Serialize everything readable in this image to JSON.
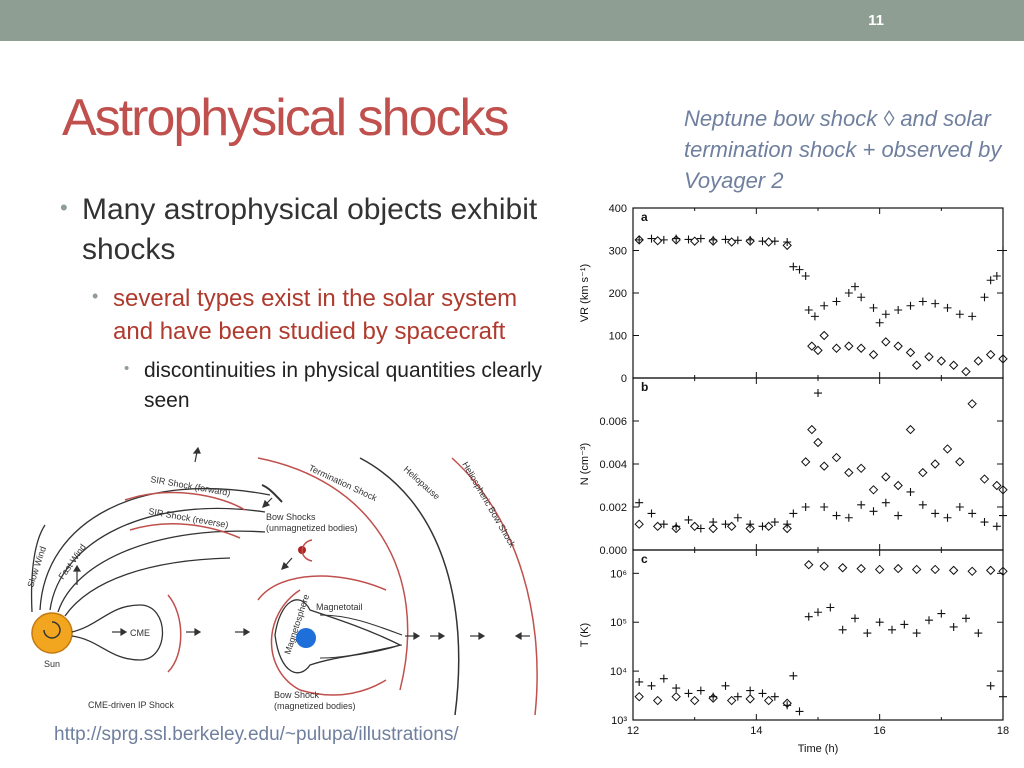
{
  "slide": {
    "number": "11",
    "title": "Astrophysical shocks",
    "caption": "Neptune bow shock ◊ and solar termination shock + observed by Voyager 2",
    "bullets": {
      "level1": "Many astrophysical objects exhibit shocks",
      "level2": "several types exist in the solar system and have been studied by spacecraft",
      "level3": "discontinuities in physical quantities clearly seen"
    },
    "source_url": "http://sprg.ssl.berkeley.edu/~pulupa/illustrations/"
  },
  "diagram": {
    "labels": {
      "sun": "Sun",
      "slow_wind": "Slow Wind",
      "fast_wind": "Fast Wind",
      "sir_forward": "SIR Shock (forward)",
      "sir_reverse": "SIR Shock (reverse)",
      "cme": "CME",
      "cme_shock": "CME-driven IP Shock",
      "bow_unmag_1": "Bow Shocks",
      "bow_unmag_2": "(unmagnetized bodies)",
      "bow_mag_1": "Bow Shock",
      "bow_mag_2": "(magnetized bodies)",
      "magnetosphere": "Magnetosphere",
      "magnetotail": "Magnetotail",
      "termination": "Termination Shock",
      "heliopause": "Heliopause",
      "helio_bow": "Heliospheric Bow Shock"
    },
    "colors": {
      "shock": "#c0504d",
      "sun": "#f2a51f",
      "planet": "#1e6fd9",
      "line": "#333333"
    }
  },
  "chart_data": [
    {
      "type": "scatter",
      "panel": "a",
      "ylabel": "VR (km s⁻¹)",
      "ylim": [
        0,
        400
      ],
      "yticks": [
        "0",
        "100",
        "200",
        "300",
        "400"
      ],
      "xlim": [
        12,
        18
      ],
      "series": [
        {
          "marker": "plus",
          "points": [
            [
              12.1,
              325
            ],
            [
              12.3,
              328
            ],
            [
              12.5,
              325
            ],
            [
              12.7,
              328
            ],
            [
              12.9,
              326
            ],
            [
              13.1,
              328
            ],
            [
              13.3,
              325
            ],
            [
              13.5,
              326
            ],
            [
              13.7,
              324
            ],
            [
              13.9,
              325
            ],
            [
              14.1,
              322
            ],
            [
              14.3,
              322
            ],
            [
              14.5,
              320
            ],
            [
              14.6,
              262
            ],
            [
              14.7,
              255
            ],
            [
              14.8,
              240
            ],
            [
              14.85,
              160
            ],
            [
              14.95,
              145
            ],
            [
              15.1,
              170
            ],
            [
              15.3,
              180
            ],
            [
              15.5,
              200
            ],
            [
              15.6,
              215
            ],
            [
              15.7,
              190
            ],
            [
              15.9,
              165
            ],
            [
              16.0,
              130
            ],
            [
              16.1,
              150
            ],
            [
              16.3,
              160
            ],
            [
              16.5,
              170
            ],
            [
              16.7,
              180
            ],
            [
              16.9,
              175
            ],
            [
              17.1,
              165
            ],
            [
              17.3,
              150
            ],
            [
              17.5,
              145
            ],
            [
              17.7,
              190
            ],
            [
              17.8,
              230
            ],
            [
              17.9,
              240
            ],
            [
              18.0,
              300
            ]
          ]
        },
        {
          "marker": "diamond",
          "points": [
            [
              12.1,
              325
            ],
            [
              12.4,
              323
            ],
            [
              12.7,
              325
            ],
            [
              13.0,
              322
            ],
            [
              13.3,
              322
            ],
            [
              13.6,
              320
            ],
            [
              13.9,
              322
            ],
            [
              14.2,
              320
            ],
            [
              14.5,
              312
            ],
            [
              14.9,
              75
            ],
            [
              15.0,
              65
            ],
            [
              15.1,
              100
            ],
            [
              15.3,
              70
            ],
            [
              15.5,
              75
            ],
            [
              15.7,
              70
            ],
            [
              15.9,
              55
            ],
            [
              16.1,
              85
            ],
            [
              16.3,
              75
            ],
            [
              16.5,
              60
            ],
            [
              16.6,
              30
            ],
            [
              16.8,
              50
            ],
            [
              17.0,
              40
            ],
            [
              17.2,
              30
            ],
            [
              17.4,
              15
            ],
            [
              17.6,
              40
            ],
            [
              17.8,
              55
            ],
            [
              18.0,
              45
            ]
          ]
        }
      ]
    },
    {
      "type": "scatter",
      "panel": "b",
      "ylabel": "N (cm⁻³)",
      "ylim": [
        0,
        0.008
      ],
      "yticks": [
        "0.000",
        "0.002",
        "0.004",
        "0.006"
      ],
      "xlim": [
        12,
        18
      ],
      "series": [
        {
          "marker": "plus",
          "points": [
            [
              12.1,
              0.0022
            ],
            [
              12.3,
              0.0017
            ],
            [
              12.5,
              0.0012
            ],
            [
              12.7,
              0.0011
            ],
            [
              12.9,
              0.0014
            ],
            [
              13.1,
              0.001
            ],
            [
              13.3,
              0.0013
            ],
            [
              13.5,
              0.0012
            ],
            [
              13.7,
              0.0015
            ],
            [
              13.9,
              0.0012
            ],
            [
              14.1,
              0.0011
            ],
            [
              14.3,
              0.0013
            ],
            [
              14.5,
              0.0012
            ],
            [
              14.6,
              0.0017
            ],
            [
              14.8,
              0.002
            ],
            [
              15.0,
              0.0073
            ],
            [
              15.1,
              0.002
            ],
            [
              15.3,
              0.0016
            ],
            [
              15.5,
              0.0015
            ],
            [
              15.7,
              0.0021
            ],
            [
              15.9,
              0.0018
            ],
            [
              16.1,
              0.0022
            ],
            [
              16.3,
              0.0016
            ],
            [
              16.5,
              0.0027
            ],
            [
              16.7,
              0.0021
            ],
            [
              16.9,
              0.0017
            ],
            [
              17.1,
              0.0015
            ],
            [
              17.3,
              0.002
            ],
            [
              17.5,
              0.0017
            ],
            [
              17.7,
              0.0013
            ],
            [
              17.9,
              0.0011
            ],
            [
              18.0,
              0.0016
            ]
          ]
        },
        {
          "marker": "diamond",
          "points": [
            [
              12.1,
              0.0012
            ],
            [
              12.4,
              0.0011
            ],
            [
              12.7,
              0.001
            ],
            [
              13.0,
              0.0011
            ],
            [
              13.3,
              0.001
            ],
            [
              13.6,
              0.0011
            ],
            [
              13.9,
              0.001
            ],
            [
              14.2,
              0.0011
            ],
            [
              14.5,
              0.001
            ],
            [
              14.8,
              0.0041
            ],
            [
              14.9,
              0.0056
            ],
            [
              15.0,
              0.005
            ],
            [
              15.1,
              0.0039
            ],
            [
              15.3,
              0.0043
            ],
            [
              15.5,
              0.0036
            ],
            [
              15.7,
              0.0038
            ],
            [
              15.9,
              0.0028
            ],
            [
              16.1,
              0.0034
            ],
            [
              16.3,
              0.003
            ],
            [
              16.5,
              0.0056
            ],
            [
              16.7,
              0.0036
            ],
            [
              16.9,
              0.004
            ],
            [
              17.1,
              0.0047
            ],
            [
              17.3,
              0.0041
            ],
            [
              17.5,
              0.0068
            ],
            [
              17.7,
              0.0033
            ],
            [
              17.9,
              0.003
            ],
            [
              18.0,
              0.0028
            ]
          ]
        }
      ]
    },
    {
      "type": "scatter",
      "panel": "c",
      "ylabel": "T (K)",
      "yscale": "log",
      "ylim": [
        1000,
        3000000
      ],
      "yticks": [
        "10³",
        "10⁴",
        "10⁵",
        "10⁶"
      ],
      "xlabel": "Time (h)",
      "xticks": [
        "12",
        "14",
        "16",
        "18"
      ],
      "xlim": [
        12,
        18
      ],
      "series": [
        {
          "marker": "plus",
          "points": [
            [
              12.1,
              6000
            ],
            [
              12.3,
              5000
            ],
            [
              12.5,
              7000
            ],
            [
              12.7,
              4500
            ],
            [
              12.9,
              3500
            ],
            [
              13.1,
              4000
            ],
            [
              13.3,
              3000
            ],
            [
              13.5,
              5000
            ],
            [
              13.7,
              3000
            ],
            [
              13.9,
              4000
            ],
            [
              14.1,
              3500
            ],
            [
              14.3,
              3000
            ],
            [
              14.5,
              2000
            ],
            [
              14.6,
              8000
            ],
            [
              14.7,
              1500
            ],
            [
              14.85,
              130000
            ],
            [
              15.0,
              160000
            ],
            [
              15.2,
              200000
            ],
            [
              15.4,
              70000
            ],
            [
              15.6,
              120000
            ],
            [
              15.8,
              60000
            ],
            [
              16.0,
              100000
            ],
            [
              16.2,
              70000
            ],
            [
              16.4,
              90000
            ],
            [
              16.6,
              60000
            ],
            [
              16.8,
              110000
            ],
            [
              17.0,
              150000
            ],
            [
              17.2,
              80000
            ],
            [
              17.4,
              120000
            ],
            [
              17.6,
              60000
            ],
            [
              17.8,
              5000
            ],
            [
              18.0,
              3000
            ]
          ]
        },
        {
          "marker": "diamond",
          "points": [
            [
              12.1,
              3000
            ],
            [
              12.4,
              2500
            ],
            [
              12.7,
              3000
            ],
            [
              13.0,
              2500
            ],
            [
              13.3,
              2800
            ],
            [
              13.6,
              2500
            ],
            [
              13.9,
              2700
            ],
            [
              14.2,
              2500
            ],
            [
              14.5,
              2200
            ],
            [
              14.85,
              1500000
            ],
            [
              15.1,
              1400000
            ],
            [
              15.4,
              1300000
            ],
            [
              15.7,
              1250000
            ],
            [
              16.0,
              1200000
            ],
            [
              16.3,
              1250000
            ],
            [
              16.6,
              1200000
            ],
            [
              16.9,
              1200000
            ],
            [
              17.2,
              1150000
            ],
            [
              17.5,
              1100000
            ],
            [
              17.8,
              1150000
            ],
            [
              18.0,
              1100000
            ]
          ]
        }
      ]
    }
  ]
}
